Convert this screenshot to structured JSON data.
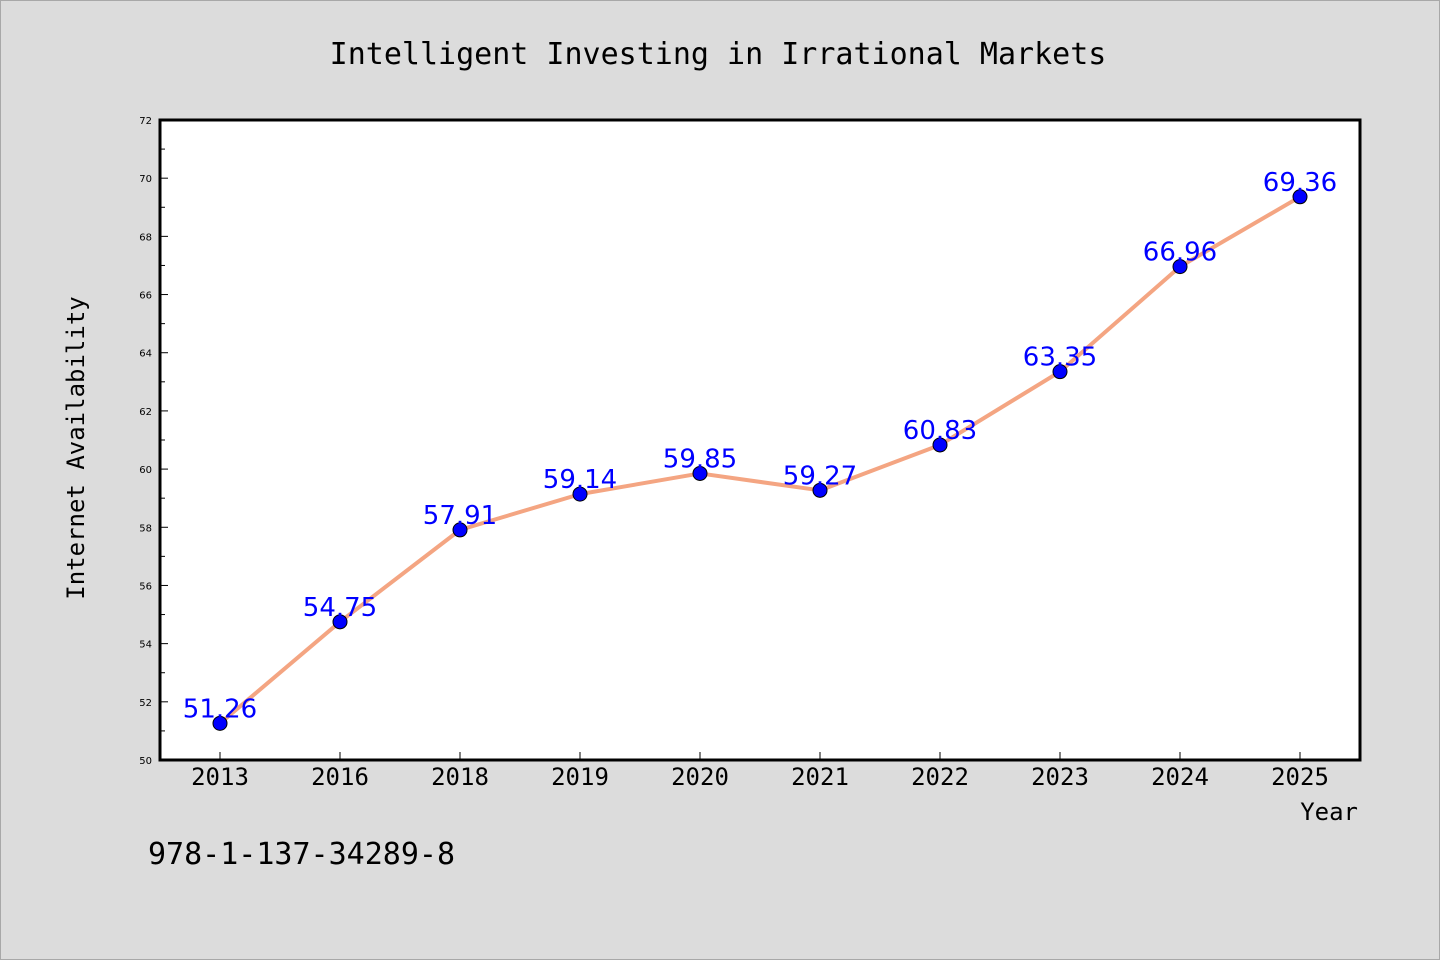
{
  "chart_data": {
    "type": "line",
    "title": "Intelligent Investing in Irrational Markets",
    "xlabel": "Year",
    "ylabel": "Internet Availability",
    "categories": [
      "2013",
      "2016",
      "2018",
      "2019",
      "2020",
      "2021",
      "2022",
      "2023",
      "2024",
      "2025"
    ],
    "series": [
      {
        "values": [
          51.26,
          54.75,
          57.91,
          59.14,
          59.85,
          59.27,
          60.83,
          63.35,
          66.96,
          69.36
        ],
        "line_color": "#f4a582",
        "marker_color": "#0000ff"
      }
    ],
    "data_labels": [
      "51.26",
      "54.75",
      "57.91",
      "59.14",
      "59.85",
      "59.27",
      "60.83",
      "63.35",
      "66.96",
      "69.36"
    ],
    "ylim": [
      50,
      72
    ],
    "yticks": [
      "50",
      "52",
      "54",
      "56",
      "58",
      "60",
      "62",
      "64",
      "66",
      "68",
      "70",
      "72"
    ],
    "grid": false,
    "legend": "none"
  },
  "footer": {
    "isbn": "978-1-137-34289-8"
  },
  "colors": {
    "background": "#dcdcdc",
    "plot_background": "#ffffff",
    "line": "#f4a582",
    "marker": "#0000ff",
    "data_label": "#0000ff"
  }
}
